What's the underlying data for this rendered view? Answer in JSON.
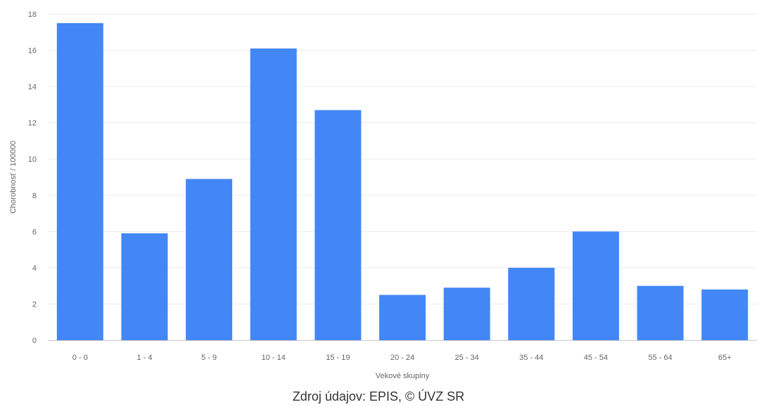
{
  "chart_data": {
    "type": "bar",
    "title": "",
    "categories": [
      "0 - 0",
      "1 - 4",
      "5 - 9",
      "10 - 14",
      "15 - 19",
      "20 - 24",
      "25 - 34",
      "35 - 44",
      "45 - 54",
      "55 - 64",
      "65+"
    ],
    "values": [
      17.5,
      5.9,
      8.9,
      16.1,
      12.7,
      2.5,
      2.9,
      4.0,
      6.0,
      3.0,
      2.8
    ],
    "xlabel": "Vekové skupiny",
    "ylabel": "Chorobnosť / 100000",
    "ylim": [
      0,
      18
    ],
    "yticks": [
      0,
      2,
      4,
      6,
      8,
      10,
      12,
      14,
      16,
      18
    ],
    "grid": true,
    "legend": "none",
    "bar_color": "#4287f5",
    "grid_color": "#ececec",
    "source": "Zdroj údajov: EPIS, © ÚVZ SR"
  }
}
